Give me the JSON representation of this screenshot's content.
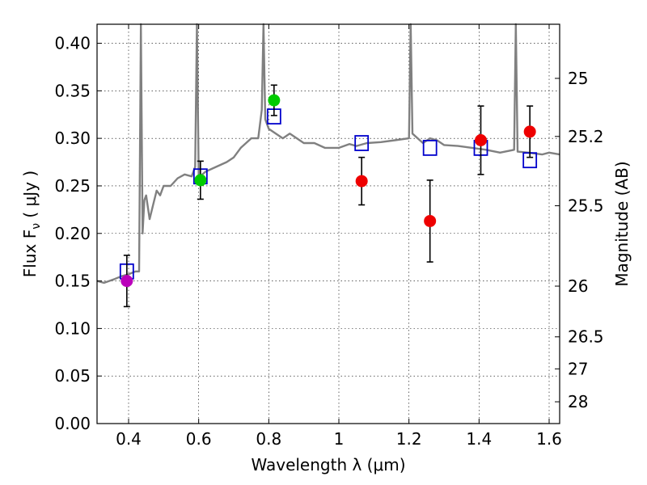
{
  "chart_data": {
    "type": "scatter",
    "xlabel": "Wavelength  λ (μm)",
    "ylabel": "Flux  F",
    "ylabel_sub": "ν",
    "ylabel_unit": "  ( μJy )",
    "y2label": "Magnitude (AB)",
    "xlim": [
      0.31,
      1.63
    ],
    "ylim": [
      0.0,
      0.42
    ],
    "x_ticks": [
      {
        "value": 0.4,
        "label": "0.4"
      },
      {
        "value": 0.6,
        "label": "0.6"
      },
      {
        "value": 0.8,
        "label": "0.8"
      },
      {
        "value": 1.0,
        "label": "1"
      },
      {
        "value": 1.2,
        "label": "1.2"
      },
      {
        "value": 1.4,
        "label": "1.4"
      },
      {
        "value": 1.6,
        "label": "1.6"
      }
    ],
    "y_ticks": [
      {
        "value": 0.0,
        "label": "0.00"
      },
      {
        "value": 0.05,
        "label": "0.05"
      },
      {
        "value": 0.1,
        "label": "0.10"
      },
      {
        "value": 0.15,
        "label": "0.15"
      },
      {
        "value": 0.2,
        "label": "0.20"
      },
      {
        "value": 0.25,
        "label": "0.25"
      },
      {
        "value": 0.3,
        "label": "0.30"
      },
      {
        "value": 0.35,
        "label": "0.35"
      },
      {
        "value": 0.4,
        "label": "0.40"
      }
    ],
    "y2_ticks": [
      {
        "mag": 25,
        "label": "25"
      },
      {
        "mag": 25.2,
        "label": "25.2"
      },
      {
        "mag": 25.5,
        "label": "25.5"
      },
      {
        "mag": 26,
        "label": "26"
      },
      {
        "mag": 26.5,
        "label": "26.5"
      },
      {
        "mag": 27,
        "label": "27"
      },
      {
        "mag": 28,
        "label": "28"
      }
    ],
    "grid": true,
    "colors": {
      "spectrum": "#808080",
      "model": "#0000cc",
      "observed_purple": "#bb00bb",
      "observed_green": "#00cc00",
      "observed_red": "#ee0000",
      "errorbar": "#000000"
    },
    "spectrum": {
      "x": [
        0.31,
        0.33,
        0.36,
        0.38,
        0.4,
        0.42,
        0.43,
        0.435,
        0.44,
        0.445,
        0.45,
        0.46,
        0.47,
        0.48,
        0.49,
        0.5,
        0.52,
        0.54,
        0.56,
        0.58,
        0.59,
        0.595,
        0.6,
        0.61,
        0.62,
        0.65,
        0.68,
        0.7,
        0.72,
        0.75,
        0.77,
        0.78,
        0.785,
        0.79,
        0.8,
        0.82,
        0.84,
        0.86,
        0.88,
        0.9,
        0.93,
        0.96,
        1.0,
        1.03,
        1.05,
        1.08,
        1.12,
        1.16,
        1.2,
        1.205,
        1.21,
        1.24,
        1.26,
        1.28,
        1.3,
        1.34,
        1.38,
        1.42,
        1.46,
        1.5,
        1.505,
        1.51,
        1.54,
        1.58,
        1.6,
        1.63
      ],
      "y": [
        0.15,
        0.148,
        0.152,
        0.155,
        0.157,
        0.16,
        0.16,
        0.42,
        0.2,
        0.235,
        0.24,
        0.215,
        0.23,
        0.245,
        0.24,
        0.25,
        0.25,
        0.258,
        0.262,
        0.26,
        0.27,
        0.42,
        0.26,
        0.262,
        0.265,
        0.27,
        0.275,
        0.28,
        0.29,
        0.3,
        0.3,
        0.33,
        0.42,
        0.32,
        0.31,
        0.305,
        0.3,
        0.305,
        0.3,
        0.295,
        0.295,
        0.29,
        0.29,
        0.294,
        0.292,
        0.295,
        0.296,
        0.298,
        0.3,
        0.42,
        0.305,
        0.295,
        0.3,
        0.298,
        0.293,
        0.292,
        0.29,
        0.288,
        0.285,
        0.288,
        0.42,
        0.286,
        0.285,
        0.283,
        0.285,
        0.283
      ]
    },
    "model_points": {
      "x": [
        0.395,
        0.605,
        0.815,
        1.065,
        1.26,
        1.405,
        1.545
      ],
      "y": [
        0.16,
        0.26,
        0.323,
        0.295,
        0.29,
        0.29,
        0.277
      ]
    },
    "observed_points": [
      {
        "x": 0.395,
        "y": 0.15,
        "err": 0.027,
        "color": "purple"
      },
      {
        "x": 0.605,
        "y": 0.256,
        "err": 0.02,
        "color": "green"
      },
      {
        "x": 0.815,
        "y": 0.34,
        "err": 0.016,
        "color": "green"
      },
      {
        "x": 1.065,
        "y": 0.255,
        "err": 0.025,
        "color": "red"
      },
      {
        "x": 1.26,
        "y": 0.213,
        "err": 0.043,
        "color": "red"
      },
      {
        "x": 1.405,
        "y": 0.298,
        "err": 0.036,
        "color": "red"
      },
      {
        "x": 1.545,
        "y": 0.307,
        "err": 0.027,
        "color": "red"
      }
    ]
  }
}
